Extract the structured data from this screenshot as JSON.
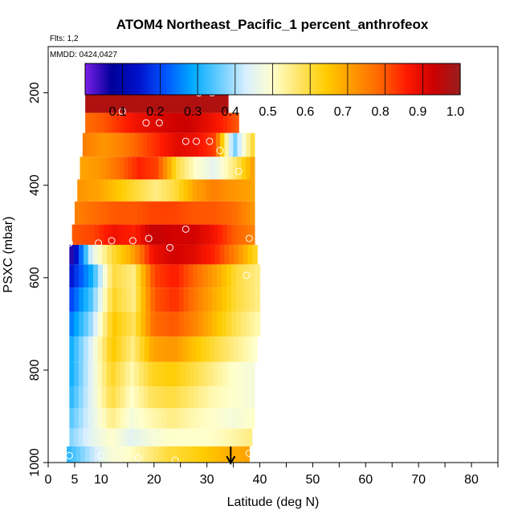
{
  "header": {
    "title": "ATOM4 Northeast_Pacific_1 percent_anthrofeox",
    "flights_label": "Flts: 1,2",
    "date_label": "MMDD: 0424,0427"
  },
  "chart_data": {
    "type": "heatmap",
    "xlabel": "Latitude (deg N)",
    "ylabel": "PSXC (mbar)",
    "xlim": [
      0,
      85
    ],
    "ylim": [
      1000,
      100
    ],
    "x_ticks": [
      0,
      5,
      10,
      20,
      30,
      40,
      50,
      60,
      70,
      80
    ],
    "y_ticks": [
      200,
      400,
      600,
      800,
      1000
    ],
    "colorbar": {
      "ticks": [
        "0.1",
        "0.2",
        "0.3",
        "0.4",
        "0.5",
        "0.6",
        "0.7",
        "0.8",
        "0.9",
        "1.0"
      ],
      "range": [
        0,
        1
      ],
      "colors": [
        "#7a1fe6",
        "#000099",
        "#0011cc",
        "#0055ff",
        "#00aaff",
        "#66ccff",
        "#d8efff",
        "#ffffcc",
        "#ffe566",
        "#ffcc00",
        "#ff9900",
        "#ff6600",
        "#ff1a00",
        "#cc0000",
        "#9a1e1e"
      ]
    },
    "arrow_latitude": 34.5,
    "rows": [
      {
        "p": 185,
        "x0": 28,
        "x1": 31,
        "v": [
          1.0
        ]
      },
      {
        "p": 225,
        "x0": 7,
        "x1": 34,
        "v": [
          0.97,
          0.97,
          0.97,
          0.97,
          0.97,
          0.97,
          0.97,
          0.97,
          0.97,
          0.97
        ]
      },
      {
        "p": 262,
        "x0": 7,
        "x1": 36,
        "v": [
          0.78,
          0.8,
          0.84,
          0.88,
          0.9,
          0.92,
          0.93,
          0.9,
          0.86,
          0.8
        ]
      },
      {
        "p": 312,
        "x0": 6.5,
        "x1": 39,
        "v": [
          0.75,
          0.72,
          0.75,
          0.8,
          0.85,
          0.9,
          0.88,
          0.82,
          0.35,
          0.6
        ]
      },
      {
        "p": 365,
        "x0": 6,
        "x1": 39,
        "v": [
          0.7,
          0.72,
          0.78,
          0.85,
          0.82,
          0.6,
          0.5,
          0.45,
          0.55,
          0.7
        ]
      },
      {
        "p": 410,
        "x0": 5.5,
        "x1": 39,
        "v": [
          0.72,
          0.7,
          0.65,
          0.6,
          0.55,
          0.6,
          0.7,
          0.75,
          0.72,
          0.7
        ]
      },
      {
        "p": 460,
        "x0": 5,
        "x1": 39,
        "v": [
          0.75,
          0.78,
          0.8,
          0.8,
          0.82,
          0.82,
          0.8,
          0.8,
          0.78,
          0.72
        ]
      },
      {
        "p": 510,
        "x0": 4.5,
        "x1": 39,
        "v": [
          0.8,
          0.82,
          0.88,
          0.85,
          0.94,
          0.92,
          0.92,
          0.88,
          0.8,
          0.75
        ]
      },
      {
        "p": 548,
        "x0": 4,
        "x1": 39.5,
        "v": [
          0.05,
          0.45,
          0.6,
          0.7,
          0.88,
          0.92,
          0.9,
          0.85,
          0.75,
          0.62
        ]
      },
      {
        "p": 595,
        "x0": 4,
        "x1": 40,
        "v": [
          0.15,
          0.3,
          0.6,
          0.55,
          0.82,
          0.86,
          0.78,
          0.7,
          0.6,
          0.55
        ]
      },
      {
        "p": 648,
        "x0": 4,
        "x1": 40,
        "v": [
          0.2,
          0.35,
          0.62,
          0.55,
          0.8,
          0.84,
          0.76,
          0.68,
          0.6,
          0.55
        ]
      },
      {
        "p": 700,
        "x0": 4,
        "x1": 40,
        "v": [
          0.25,
          0.4,
          0.65,
          0.58,
          0.78,
          0.8,
          0.74,
          0.66,
          0.58,
          0.52
        ]
      },
      {
        "p": 755,
        "x0": 4,
        "x1": 39.5,
        "v": [
          0.3,
          0.45,
          0.65,
          0.55,
          0.7,
          0.72,
          0.66,
          0.6,
          0.55,
          0.5
        ]
      },
      {
        "p": 810,
        "x0": 4,
        "x1": 39,
        "v": [
          0.3,
          0.45,
          0.62,
          0.52,
          0.62,
          0.64,
          0.6,
          0.55,
          0.5,
          0.48
        ]
      },
      {
        "p": 860,
        "x0": 4,
        "x1": 39,
        "v": [
          0.32,
          0.45,
          0.6,
          0.5,
          0.58,
          0.6,
          0.56,
          0.52,
          0.5,
          0.48
        ]
      },
      {
        "p": 905,
        "x0": 4,
        "x1": 39,
        "v": [
          0.35,
          0.45,
          0.55,
          0.48,
          0.52,
          0.55,
          0.52,
          0.5,
          0.48,
          0.5
        ]
      },
      {
        "p": 948,
        "x0": 4,
        "x1": 38.5,
        "v": [
          0.38,
          0.45,
          0.5,
          0.45,
          0.48,
          0.5,
          0.5,
          0.5,
          0.52,
          0.55
        ]
      },
      {
        "p": 982,
        "x0": 3.5,
        "x1": 38,
        "v": [
          0.32,
          0.4,
          0.48,
          0.5,
          0.55,
          0.6,
          0.62,
          0.65,
          0.68,
          0.7
        ]
      }
    ],
    "points": [
      {
        "x": 28.5,
        "y": 200
      },
      {
        "x": 31,
        "y": 200
      },
      {
        "x": 14,
        "y": 240
      },
      {
        "x": 18.5,
        "y": 265
      },
      {
        "x": 21,
        "y": 265
      },
      {
        "x": 26,
        "y": 305
      },
      {
        "x": 28,
        "y": 305
      },
      {
        "x": 30.5,
        "y": 305
      },
      {
        "x": 32.5,
        "y": 325
      },
      {
        "x": 36,
        "y": 370
      },
      {
        "x": 26,
        "y": 495
      },
      {
        "x": 38,
        "y": 515
      },
      {
        "x": 4,
        "y": 525
      },
      {
        "x": 9.5,
        "y": 525
      },
      {
        "x": 12,
        "y": 520
      },
      {
        "x": 16,
        "y": 520
      },
      {
        "x": 19,
        "y": 515
      },
      {
        "x": 23,
        "y": 535
      },
      {
        "x": 37.5,
        "y": 595
      },
      {
        "x": 4,
        "y": 985
      },
      {
        "x": 10,
        "y": 985
      },
      {
        "x": 17,
        "y": 990
      },
      {
        "x": 24,
        "y": 995
      },
      {
        "x": 38,
        "y": 980
      }
    ]
  }
}
